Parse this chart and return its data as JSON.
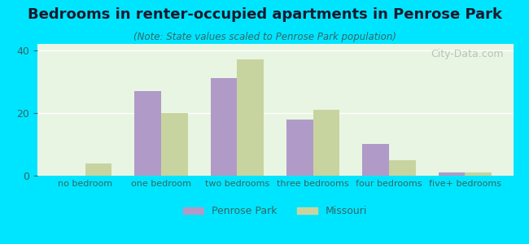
{
  "title": "Bedrooms in renter-occupied apartments in Penrose Park",
  "subtitle": "(Note: State values scaled to Penrose Park population)",
  "categories": [
    "no bedroom",
    "one bedroom",
    "two bedrooms",
    "three bedrooms",
    "four bedrooms",
    "five+ bedrooms"
  ],
  "penrose_values": [
    0,
    27,
    31,
    18,
    10,
    1
  ],
  "missouri_values": [
    4,
    20,
    37,
    21,
    5,
    1
  ],
  "penrose_color": "#b09ac8",
  "missouri_color": "#c8d4a0",
  "background_outer": "#00e5ff",
  "background_inner": "#e8f5e2",
  "ylim": [
    0,
    42
  ],
  "yticks": [
    0,
    20,
    40
  ],
  "grid_color": "#ffffff",
  "bar_width": 0.35,
  "legend_penrose": "Penrose Park",
  "legend_missouri": "Missouri",
  "watermark": "City-Data.com"
}
